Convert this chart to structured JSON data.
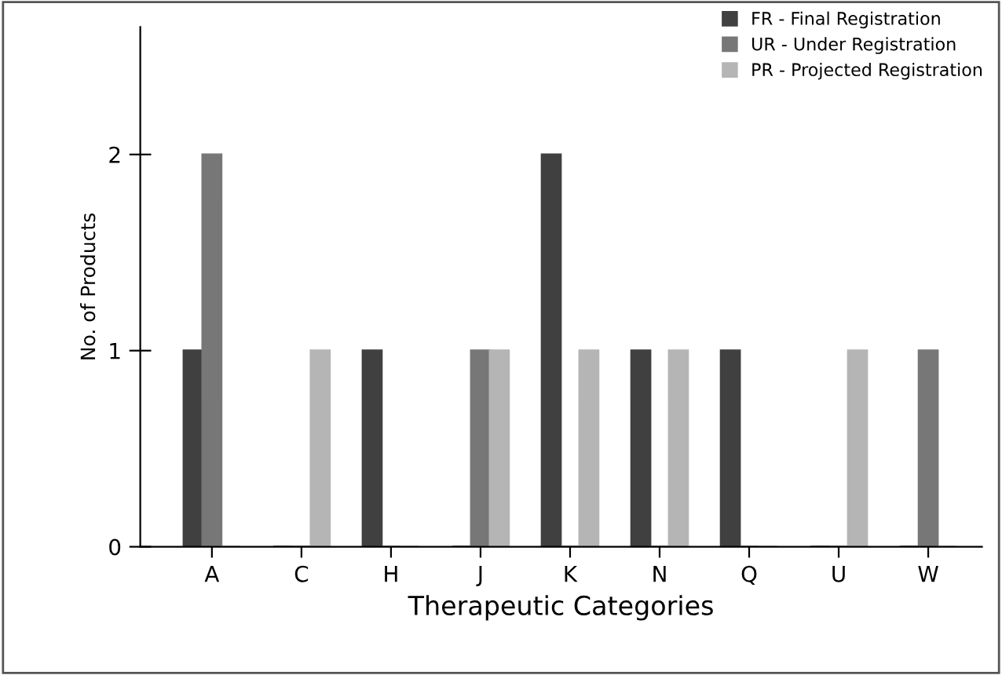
{
  "chart_data": {
    "type": "bar",
    "xlabel": "Therapeutic Categories",
    "ylabel": "No. of Products",
    "categories": [
      "A",
      "C",
      "H",
      "J",
      "K",
      "N",
      "Q",
      "U",
      "W"
    ],
    "series": [
      {
        "name": "FR - Final Registration",
        "color": "#404040",
        "values": [
          1,
          0,
          1,
          0,
          2,
          1,
          1,
          0,
          0
        ]
      },
      {
        "name": "UR - Under Registration",
        "color": "#777777",
        "values": [
          2,
          0,
          0,
          1,
          0,
          0,
          0,
          0,
          1
        ]
      },
      {
        "name": "PR - Projected Registration",
        "color": "#b5b5b5",
        "values": [
          0,
          1,
          0,
          1,
          1,
          1,
          0,
          1,
          0
        ]
      }
    ],
    "ylim": [
      0,
      2.65
    ],
    "yticks": [
      0,
      1,
      2
    ],
    "grid": false,
    "legend": "top right"
  }
}
